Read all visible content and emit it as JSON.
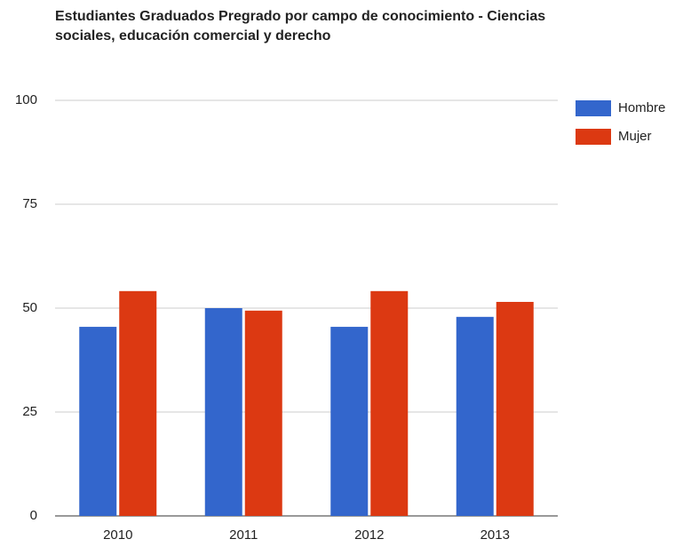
{
  "chart_data": {
    "type": "bar",
    "title": "Estudiantes Graduados Pregrado por campo de conocimiento - Ciencias sociales, educación comercial y derecho",
    "categories": [
      "2010",
      "2011",
      "2012",
      "2013"
    ],
    "series": [
      {
        "name": "Hombre",
        "color": "#3366cc",
        "values": [
          45.5,
          50.0,
          45.5,
          47.9
        ]
      },
      {
        "name": "Mujer",
        "color": "#dc3912",
        "values": [
          54.1,
          49.4,
          54.1,
          51.5
        ]
      }
    ],
    "ylim": [
      0,
      100
    ],
    "yticks": [
      0,
      25,
      50,
      75,
      100
    ],
    "grid": true,
    "legend": "right"
  }
}
